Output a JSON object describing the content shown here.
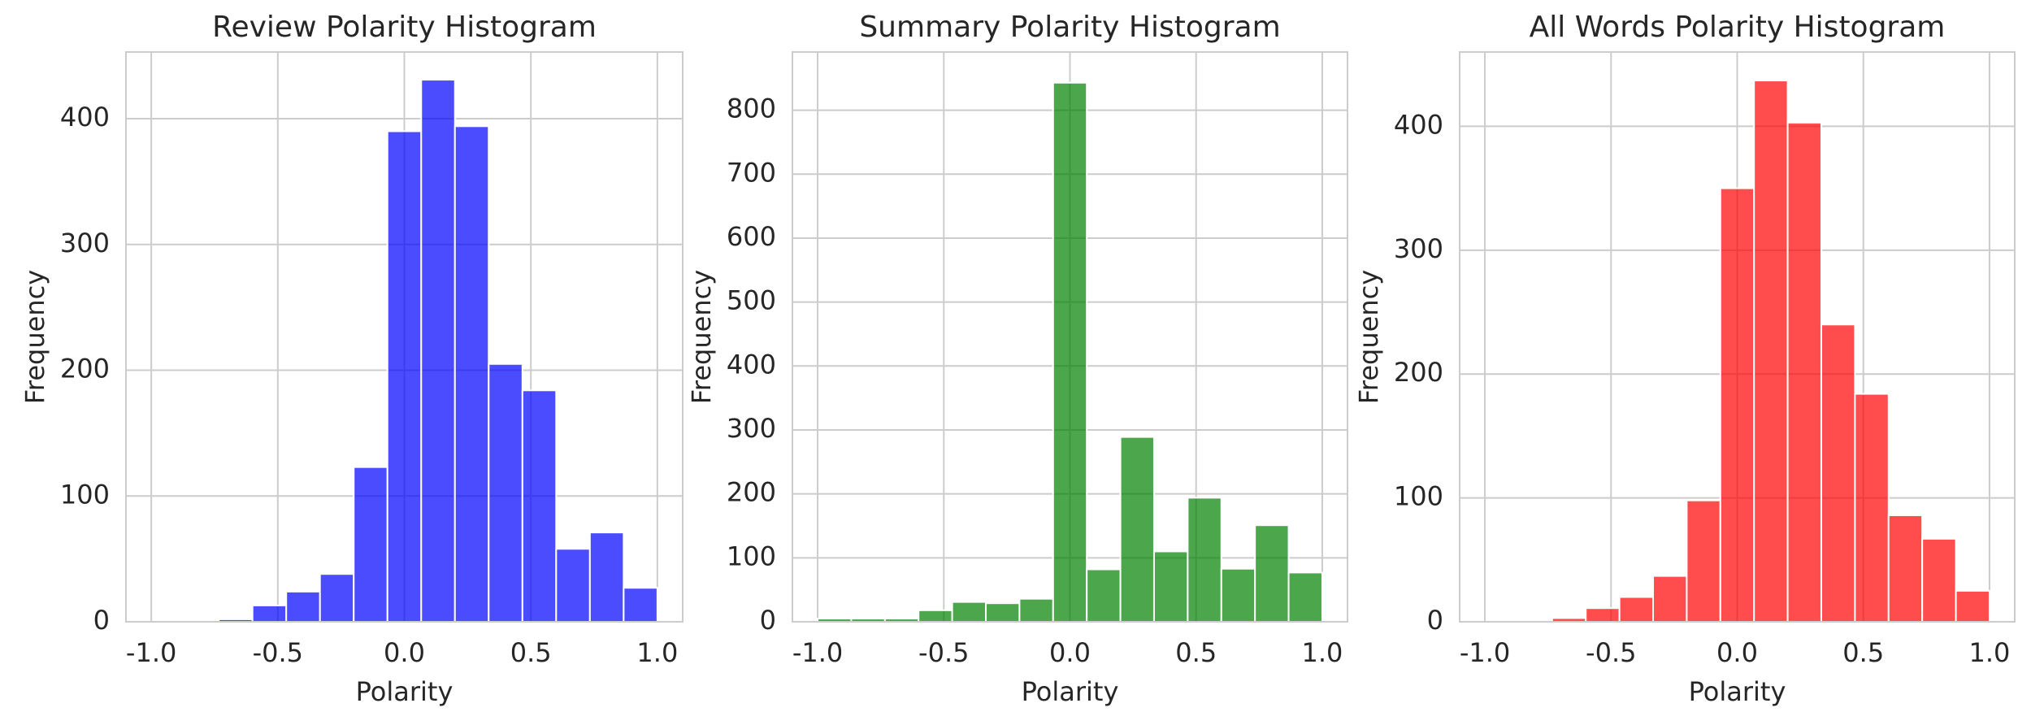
{
  "chart_data": [
    {
      "type": "histogram",
      "title": "Review Polarity Histogram",
      "x_label": "Polarity",
      "y_label": "Frequency",
      "color": "#0000ff",
      "bins": [
        -1.0,
        -0.8667,
        -0.7333,
        -0.6,
        -0.4667,
        -0.3333,
        -0.2,
        -0.0667,
        0.0667,
        0.2,
        0.3333,
        0.4667,
        0.6,
        0.7333,
        0.8667,
        1.0
      ],
      "values": [
        0,
        1,
        2,
        13,
        24,
        38,
        123,
        390,
        431,
        394,
        205,
        184,
        58,
        71,
        27
      ],
      "xlim": [
        -1.1,
        1.1
      ],
      "xticks": [
        -1.0,
        -0.5,
        0.0,
        0.5,
        1.0
      ],
      "ylim": [
        0,
        453
      ],
      "yticks": [
        0,
        100,
        200,
        300,
        400
      ],
      "grid": true
    },
    {
      "type": "histogram",
      "title": "Summary Polarity Histogram",
      "x_label": "Polarity",
      "y_label": "Frequency",
      "color": "#008000",
      "bins": [
        -1.0,
        -0.8667,
        -0.7333,
        -0.6,
        -0.4667,
        -0.3333,
        -0.2,
        -0.0667,
        0.0667,
        0.2,
        0.3333,
        0.4667,
        0.6,
        0.7333,
        0.8667,
        1.0
      ],
      "values": [
        5,
        5,
        5,
        18,
        31,
        29,
        36,
        843,
        82,
        289,
        110,
        194,
        83,
        151,
        77
      ],
      "xlim": [
        -1.1,
        1.1
      ],
      "xticks": [
        -1.0,
        -0.5,
        0.0,
        0.5,
        1.0
      ],
      "ylim": [
        0,
        891
      ],
      "yticks": [
        0,
        100,
        200,
        300,
        400,
        500,
        600,
        700,
        800
      ],
      "grid": true
    },
    {
      "type": "histogram",
      "title": "All Words Polarity Histogram",
      "x_label": "Polarity",
      "y_label": "Frequency",
      "color": "#ff0000",
      "bins": [
        -1.0,
        -0.8667,
        -0.7333,
        -0.6,
        -0.4667,
        -0.3333,
        -0.2,
        -0.0667,
        0.0667,
        0.2,
        0.3333,
        0.4667,
        0.6,
        0.7333,
        0.8667,
        1.0
      ],
      "values": [
        0,
        1,
        3,
        11,
        20,
        37,
        98,
        350,
        437,
        403,
        240,
        184,
        86,
        67,
        25
      ],
      "xlim": [
        -1.1,
        1.1
      ],
      "xticks": [
        -1.0,
        -0.5,
        0.0,
        0.5,
        1.0
      ],
      "ylim": [
        0,
        460
      ],
      "yticks": [
        0,
        100,
        200,
        300,
        400
      ],
      "grid": true
    }
  ]
}
